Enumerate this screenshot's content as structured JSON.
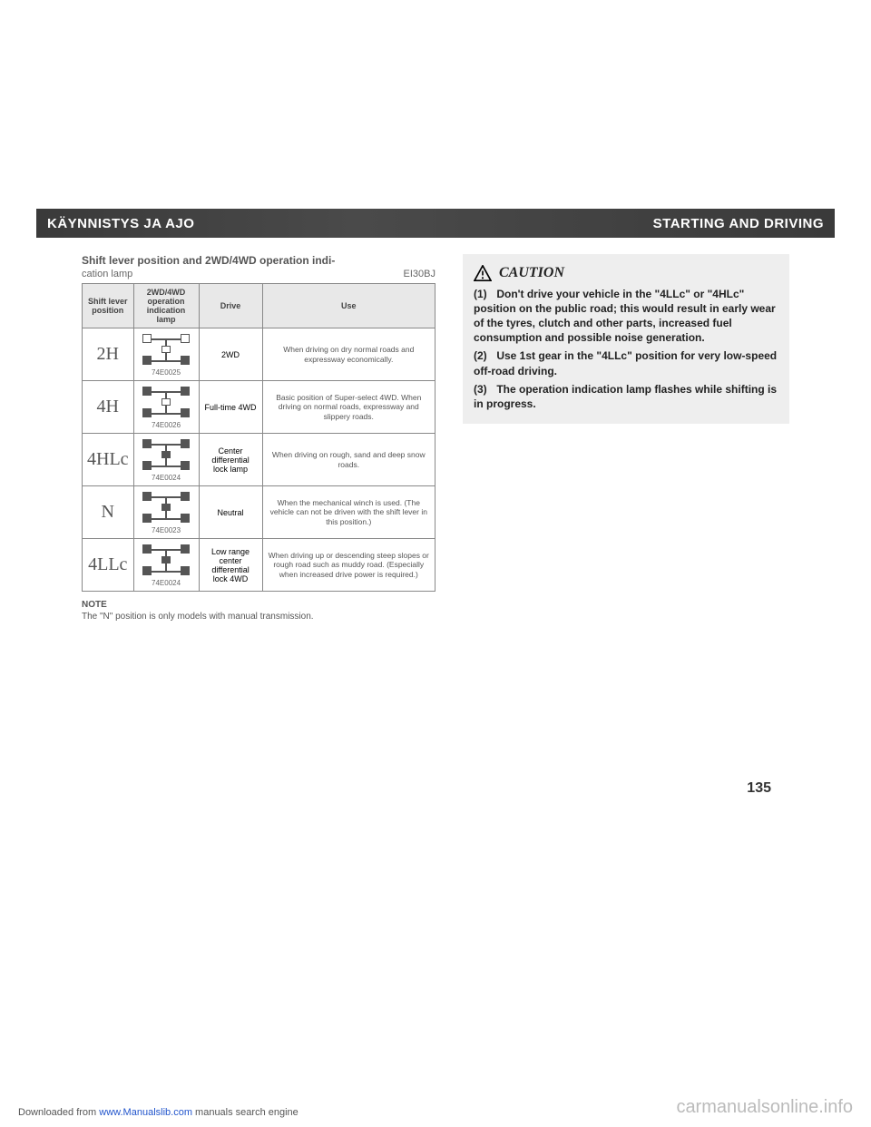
{
  "header": {
    "left": "KÄYNNISTYS JA AJO",
    "right": "STARTING AND DRIVING"
  },
  "table": {
    "title": "Shift lever position and 2WD/4WD operation indi-",
    "subtitle_left": "cation lamp",
    "subtitle_right": "EI30BJ",
    "columns": [
      "Shift lever position",
      "2WD/4WD operation indication lamp",
      "Drive",
      "Use"
    ],
    "rows": [
      {
        "pos": "2H",
        "lamp_code": "74E0025",
        "front_filled": false,
        "center_filled": false,
        "drive": "2WD",
        "use": "When driving on dry normal roads and expressway economically."
      },
      {
        "pos": "4H",
        "lamp_code": "74E0026",
        "front_filled": true,
        "center_filled": false,
        "drive": "Full-time 4WD",
        "use": "Basic position of Super-select 4WD. When driving on normal roads, expressway and slippery roads."
      },
      {
        "pos": "4HLc",
        "lamp_code": "74E0024",
        "front_filled": true,
        "center_filled": true,
        "drive": "Center differential lock lamp",
        "use": "When driving on rough, sand and deep snow roads."
      },
      {
        "pos": "N",
        "lamp_code": "74E0023",
        "front_filled": true,
        "center_filled": true,
        "drive": "Neutral",
        "use": "When the mechanical winch is used. (The vehicle can not be driven with the shift lever in this position.)"
      },
      {
        "pos": "4LLc",
        "lamp_code": "74E0024",
        "front_filled": true,
        "center_filled": true,
        "drive": "Low range center differential lock 4WD",
        "use": "When driving up or descending steep slopes or rough road such as muddy road. (Especially when increased drive power is required.)"
      }
    ],
    "note_label": "NOTE",
    "note_text": "The \"N\" position is only models with manual transmission."
  },
  "caution": {
    "heading": "CAUTION",
    "items": [
      "Don't drive your vehicle in the \"4LLc\" or \"4HLc\" position on the public road; this would result in early wear of the tyres, clutch and other parts, increased fuel consumption and possible noise generation.",
      "Use 1st gear in the \"4LLc\" position for very low-speed off-road driving.",
      "The operation indication lamp flashes while shifting is in progress."
    ]
  },
  "page_number": "135",
  "footer": {
    "left_prefix": "Downloaded from ",
    "left_link": "www.Manualslib.com",
    "left_suffix": " manuals search engine",
    "right": "carmanualsonline.info"
  },
  "colors": {
    "header_bg": "#3a3a3a",
    "header_text": "#ffffff",
    "border": "#888888",
    "caution_bg": "#eeeeee",
    "text": "#222222",
    "watermark": "#bbbbbb"
  }
}
